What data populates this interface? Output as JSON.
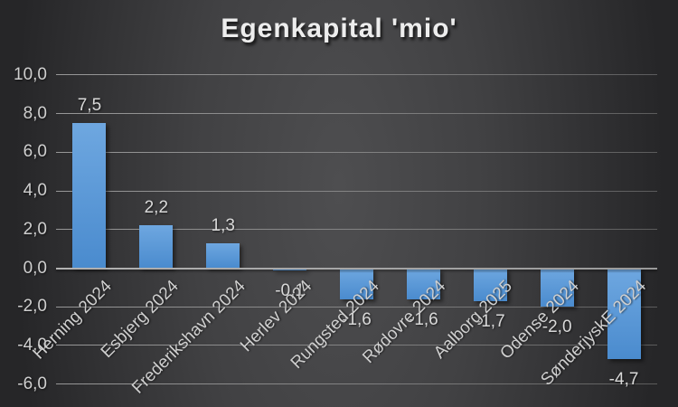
{
  "title": "Egenkapital 'mio'",
  "colors": {
    "background_center": "#4e4e50",
    "background_edge": "#262628",
    "bar_top": "#6ea7e0",
    "bar_bottom": "#4a8bce",
    "gridline": "#7a7a7a",
    "zero_line": "#a8a8a8",
    "label_text": "#cfcfcf",
    "title_text": "#ededed"
  },
  "chart_data": {
    "type": "bar",
    "title": "Egenkapital 'mio'",
    "categories": [
      "Herning 2024",
      "Esbjerg 2024",
      "Frederikshavn 2024",
      "Herlev 2024",
      "Rungsted 2024",
      "Rødovre 2024",
      "Aalborg 2025",
      "Odense 2024",
      "SønderjyskE 2024"
    ],
    "values": [
      7.5,
      2.2,
      1.3,
      -0.1,
      -1.6,
      -1.6,
      -1.7,
      -2.0,
      -4.7
    ],
    "value_labels": [
      "7,5",
      "2,2",
      "1,3",
      "-0,1",
      "-1,6",
      "-1,6",
      "-1,7",
      "-2,0",
      "-4,7"
    ],
    "y_ticks": [
      10,
      8,
      6,
      4,
      2,
      0,
      -2,
      -4,
      -6
    ],
    "y_tick_labels": [
      "10,0",
      "8,0",
      "6,0",
      "4,0",
      "2,0",
      "0,0",
      "-2,0",
      "-4,0",
      "-6,0"
    ],
    "ylim": [
      -6,
      10
    ],
    "xlabel": "",
    "ylabel": "",
    "grid": true,
    "legend": false,
    "decimal_separator": ",",
    "category_label_rotation_deg": 45
  }
}
